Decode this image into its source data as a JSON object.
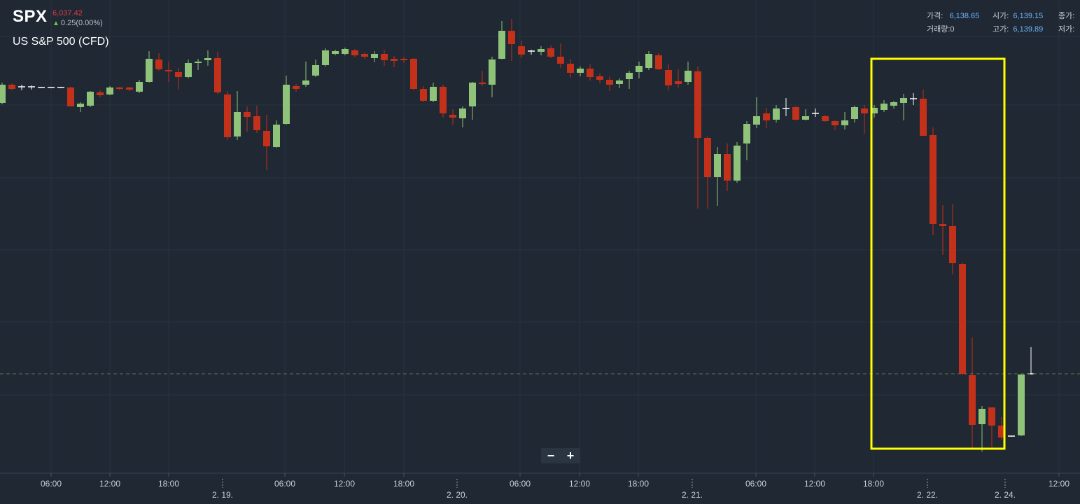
{
  "header": {
    "symbol": "SPX",
    "last": "6,037.42",
    "change": "0.25(0.00%)",
    "name": "US S&P 500 (CFD)"
  },
  "ohlc": {
    "price_label": "가격:",
    "price": "6,138.65",
    "open_label": "시가:",
    "open": "6,139.15",
    "close_label": "종가:",
    "volume_label": "거래량:0",
    "high_label": "고가:",
    "high": "6,139.89",
    "low_label": "저가:"
  },
  "zoom": {
    "minus": "−",
    "plus": "+"
  },
  "chart_data": {
    "type": "candlestick",
    "time_labels": [
      "06:00",
      "12:00",
      "18:00",
      "06:00",
      "12:00",
      "18:00",
      "06:00",
      "12:00",
      "18:00",
      "06:00",
      "12:00",
      "18:00",
      "12:00"
    ],
    "date_labels": [
      "2. 19.",
      "2. 20.",
      "2. 21.",
      "2. 22.",
      "2. 24."
    ],
    "grid": true,
    "colors": {
      "up": "#8fc37a",
      "down": "#c4311a",
      "grid": "#283240",
      "background": "#1f2833",
      "highlight": "#ffff00",
      "price_line": "#5f7550"
    }
  }
}
